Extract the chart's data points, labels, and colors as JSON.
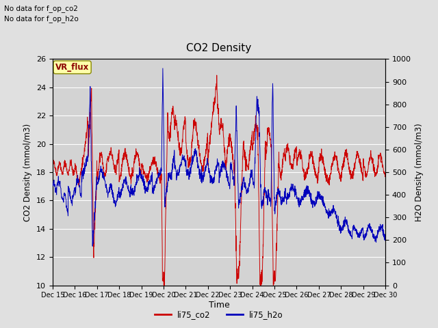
{
  "title": "CO2 Density",
  "xlabel": "Time",
  "ylabel_left": "CO2 Density (mmol/m3)",
  "ylabel_right": "H2O Density (mmol/m3)",
  "top_text_line1": "No data for f_op_co2",
  "top_text_line2": "No data for f_op_h2o",
  "vr_flux_label": "VR_flux",
  "legend_co2": "li75_co2",
  "legend_h2o": "li75_h2o",
  "ylim_left": [
    10,
    26
  ],
  "ylim_right": [
    0,
    1000
  ],
  "yticks_left": [
    10,
    12,
    14,
    16,
    18,
    20,
    22,
    24,
    26
  ],
  "yticks_right": [
    0,
    100,
    200,
    300,
    400,
    500,
    600,
    700,
    800,
    900,
    1000
  ],
  "xtick_labels": [
    "Dec 15",
    "Dec 16",
    "Dec 17",
    "Dec 18",
    "Dec 19",
    "Dec 20",
    "Dec 21",
    "Dec 22",
    "Dec 23",
    "Dec 24",
    "Dec 25",
    "Dec 26",
    "Dec 27",
    "Dec 28",
    "Dec 29",
    "Dec 30"
  ],
  "color_co2": "#cc0000",
  "color_h2o": "#0000bb",
  "bg_color": "#e0e0e0",
  "plot_bg_color": "#d3d3d3",
  "grid_color": "#ffffff",
  "figsize": [
    6.4,
    4.8
  ],
  "dpi": 100
}
